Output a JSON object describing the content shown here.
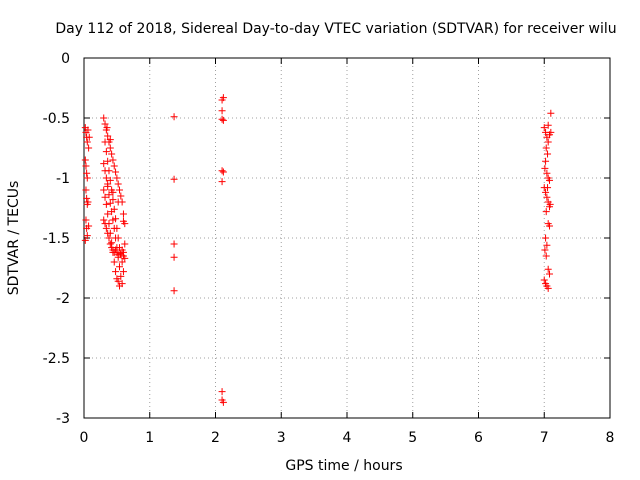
{
  "chart_data": {
    "type": "scatter",
    "title": "Day 112 of 2018, Sidereal Day-to-day VTEC variation (SDTVAR) for receiver wilu",
    "xlabel": "GPS time / hours",
    "ylabel": "SDTVAR / TECUs",
    "xlim": [
      0,
      8
    ],
    "ylim": [
      -3,
      0
    ],
    "xticks": [
      0,
      1,
      2,
      3,
      4,
      5,
      6,
      7,
      8
    ],
    "xtick_labels": [
      "0",
      "1",
      "2",
      "3",
      "4",
      "5",
      "6",
      "7",
      "8"
    ],
    "yticks": [
      0,
      -0.5,
      -1,
      -1.5,
      -2,
      -2.5,
      -3
    ],
    "ytick_labels": [
      "0",
      "-0.5",
      "-1",
      "-1.5",
      "-2",
      "-2.5",
      "-3"
    ],
    "grid": true,
    "marker": "+",
    "marker_color": "#ff0000",
    "series": [
      {
        "name": "SDTVAR",
        "points": [
          [
            0.02,
            -0.58
          ],
          [
            0.03,
            -0.62
          ],
          [
            0.04,
            -0.66
          ],
          [
            0.05,
            -0.7
          ],
          [
            0.02,
            -0.85
          ],
          [
            0.03,
            -0.9
          ],
          [
            0.04,
            -0.96
          ],
          [
            0.05,
            -1.0
          ],
          [
            0.03,
            -1.1
          ],
          [
            0.04,
            -1.17
          ],
          [
            0.05,
            -1.22
          ],
          [
            0.03,
            -1.35
          ],
          [
            0.04,
            -1.42
          ],
          [
            0.05,
            -1.48
          ],
          [
            0.02,
            -1.52
          ],
          [
            0.06,
            -0.6
          ],
          [
            0.07,
            -0.75
          ],
          [
            0.06,
            -1.2
          ],
          [
            0.07,
            -1.4
          ],
          [
            0.08,
            -0.66
          ],
          [
            0.3,
            -0.5
          ],
          [
            0.32,
            -0.55
          ],
          [
            0.34,
            -0.6
          ],
          [
            0.36,
            -0.65
          ],
          [
            0.38,
            -0.7
          ],
          [
            0.4,
            -0.75
          ],
          [
            0.42,
            -0.8
          ],
          [
            0.44,
            -0.85
          ],
          [
            0.46,
            -0.9
          ],
          [
            0.48,
            -0.95
          ],
          [
            0.5,
            -1.0
          ],
          [
            0.52,
            -1.05
          ],
          [
            0.54,
            -1.1
          ],
          [
            0.56,
            -1.15
          ],
          [
            0.58,
            -1.2
          ],
          [
            0.6,
            -1.3
          ],
          [
            0.62,
            -1.38
          ],
          [
            0.32,
            -0.7
          ],
          [
            0.34,
            -0.78
          ],
          [
            0.36,
            -0.86
          ],
          [
            0.38,
            -0.94
          ],
          [
            0.4,
            -1.02
          ],
          [
            0.42,
            -1.1
          ],
          [
            0.44,
            -1.18
          ],
          [
            0.46,
            -1.26
          ],
          [
            0.48,
            -1.34
          ],
          [
            0.5,
            -1.42
          ],
          [
            0.52,
            -1.5
          ],
          [
            0.54,
            -1.58
          ],
          [
            0.56,
            -1.64
          ],
          [
            0.58,
            -1.7
          ],
          [
            0.6,
            -1.62
          ],
          [
            0.62,
            -1.55
          ],
          [
            0.3,
            -0.88
          ],
          [
            0.32,
            -0.94
          ],
          [
            0.34,
            -1.0
          ],
          [
            0.36,
            -1.07
          ],
          [
            0.38,
            -1.14
          ],
          [
            0.4,
            -1.21
          ],
          [
            0.42,
            -1.28
          ],
          [
            0.44,
            -1.35
          ],
          [
            0.46,
            -1.42
          ],
          [
            0.48,
            -1.5
          ],
          [
            0.5,
            -1.58
          ],
          [
            0.52,
            -1.66
          ],
          [
            0.54,
            -1.74
          ],
          [
            0.56,
            -1.82
          ],
          [
            0.58,
            -1.88
          ],
          [
            0.6,
            -1.78
          ],
          [
            0.3,
            -1.1
          ],
          [
            0.32,
            -1.16
          ],
          [
            0.34,
            -1.22
          ],
          [
            0.36,
            -1.3
          ],
          [
            0.38,
            -1.38
          ],
          [
            0.4,
            -1.46
          ],
          [
            0.42,
            -1.54
          ],
          [
            0.44,
            -1.62
          ],
          [
            0.46,
            -1.7
          ],
          [
            0.48,
            -1.78
          ],
          [
            0.5,
            -1.84
          ],
          [
            0.52,
            -1.86
          ],
          [
            0.54,
            -1.9
          ],
          [
            0.3,
            -1.35
          ],
          [
            0.32,
            -1.38
          ],
          [
            0.34,
            -1.42
          ],
          [
            0.36,
            -1.46
          ],
          [
            0.38,
            -1.5
          ],
          [
            0.4,
            -1.55
          ],
          [
            0.42,
            -1.58
          ],
          [
            0.44,
            -1.6
          ],
          [
            0.46,
            -1.62
          ],
          [
            0.48,
            -1.6
          ],
          [
            0.5,
            -1.62
          ],
          [
            0.52,
            -1.64
          ],
          [
            0.55,
            -1.63
          ],
          [
            0.58,
            -1.6
          ],
          [
            0.6,
            -1.65
          ],
          [
            0.36,
            -1.05
          ],
          [
            0.44,
            -1.12
          ],
          [
            0.52,
            -1.2
          ],
          [
            0.6,
            -1.36
          ],
          [
            0.62,
            -1.67
          ],
          [
            0.35,
            -0.58
          ],
          [
            0.4,
            -0.68
          ],
          [
            1.37,
            -0.49
          ],
          [
            1.37,
            -1.01
          ],
          [
            1.37,
            -1.55
          ],
          [
            1.37,
            -1.66
          ],
          [
            1.37,
            -1.94
          ],
          [
            2.1,
            -0.35
          ],
          [
            2.12,
            -0.33
          ],
          [
            2.1,
            -0.44
          ],
          [
            2.1,
            -0.51
          ],
          [
            2.12,
            -0.52
          ],
          [
            2.1,
            -0.94
          ],
          [
            2.12,
            -0.95
          ],
          [
            2.1,
            -1.03
          ],
          [
            2.1,
            -2.78
          ],
          [
            2.1,
            -2.85
          ],
          [
            2.12,
            -2.87
          ],
          [
            7.0,
            -0.58
          ],
          [
            7.02,
            -0.62
          ],
          [
            7.04,
            -0.66
          ],
          [
            7.06,
            -0.7
          ],
          [
            7.08,
            -0.64
          ],
          [
            7.1,
            -0.46
          ],
          [
            7.06,
            -0.56
          ],
          [
            7.03,
            -0.75
          ],
          [
            7.05,
            -0.8
          ],
          [
            7.02,
            -0.86
          ],
          [
            7.01,
            -0.92
          ],
          [
            7.04,
            -0.96
          ],
          [
            7.06,
            -1.0
          ],
          [
            7.08,
            -1.02
          ],
          [
            7.0,
            -1.08
          ],
          [
            7.02,
            -1.12
          ],
          [
            7.04,
            -1.16
          ],
          [
            7.06,
            -1.2
          ],
          [
            7.08,
            -1.24
          ],
          [
            7.03,
            -1.28
          ],
          [
            7.06,
            -1.38
          ],
          [
            7.08,
            -1.4
          ],
          [
            7.02,
            -1.5
          ],
          [
            7.04,
            -1.56
          ],
          [
            7.01,
            -1.6
          ],
          [
            7.03,
            -1.65
          ],
          [
            7.06,
            -1.76
          ],
          [
            7.08,
            -1.8
          ],
          [
            7.0,
            -1.85
          ],
          [
            7.02,
            -1.88
          ],
          [
            7.04,
            -1.9
          ],
          [
            7.06,
            -1.92
          ],
          [
            7.1,
            -0.62
          ],
          [
            7.05,
            -1.08
          ],
          [
            7.09,
            -1.22
          ]
        ]
      }
    ]
  }
}
